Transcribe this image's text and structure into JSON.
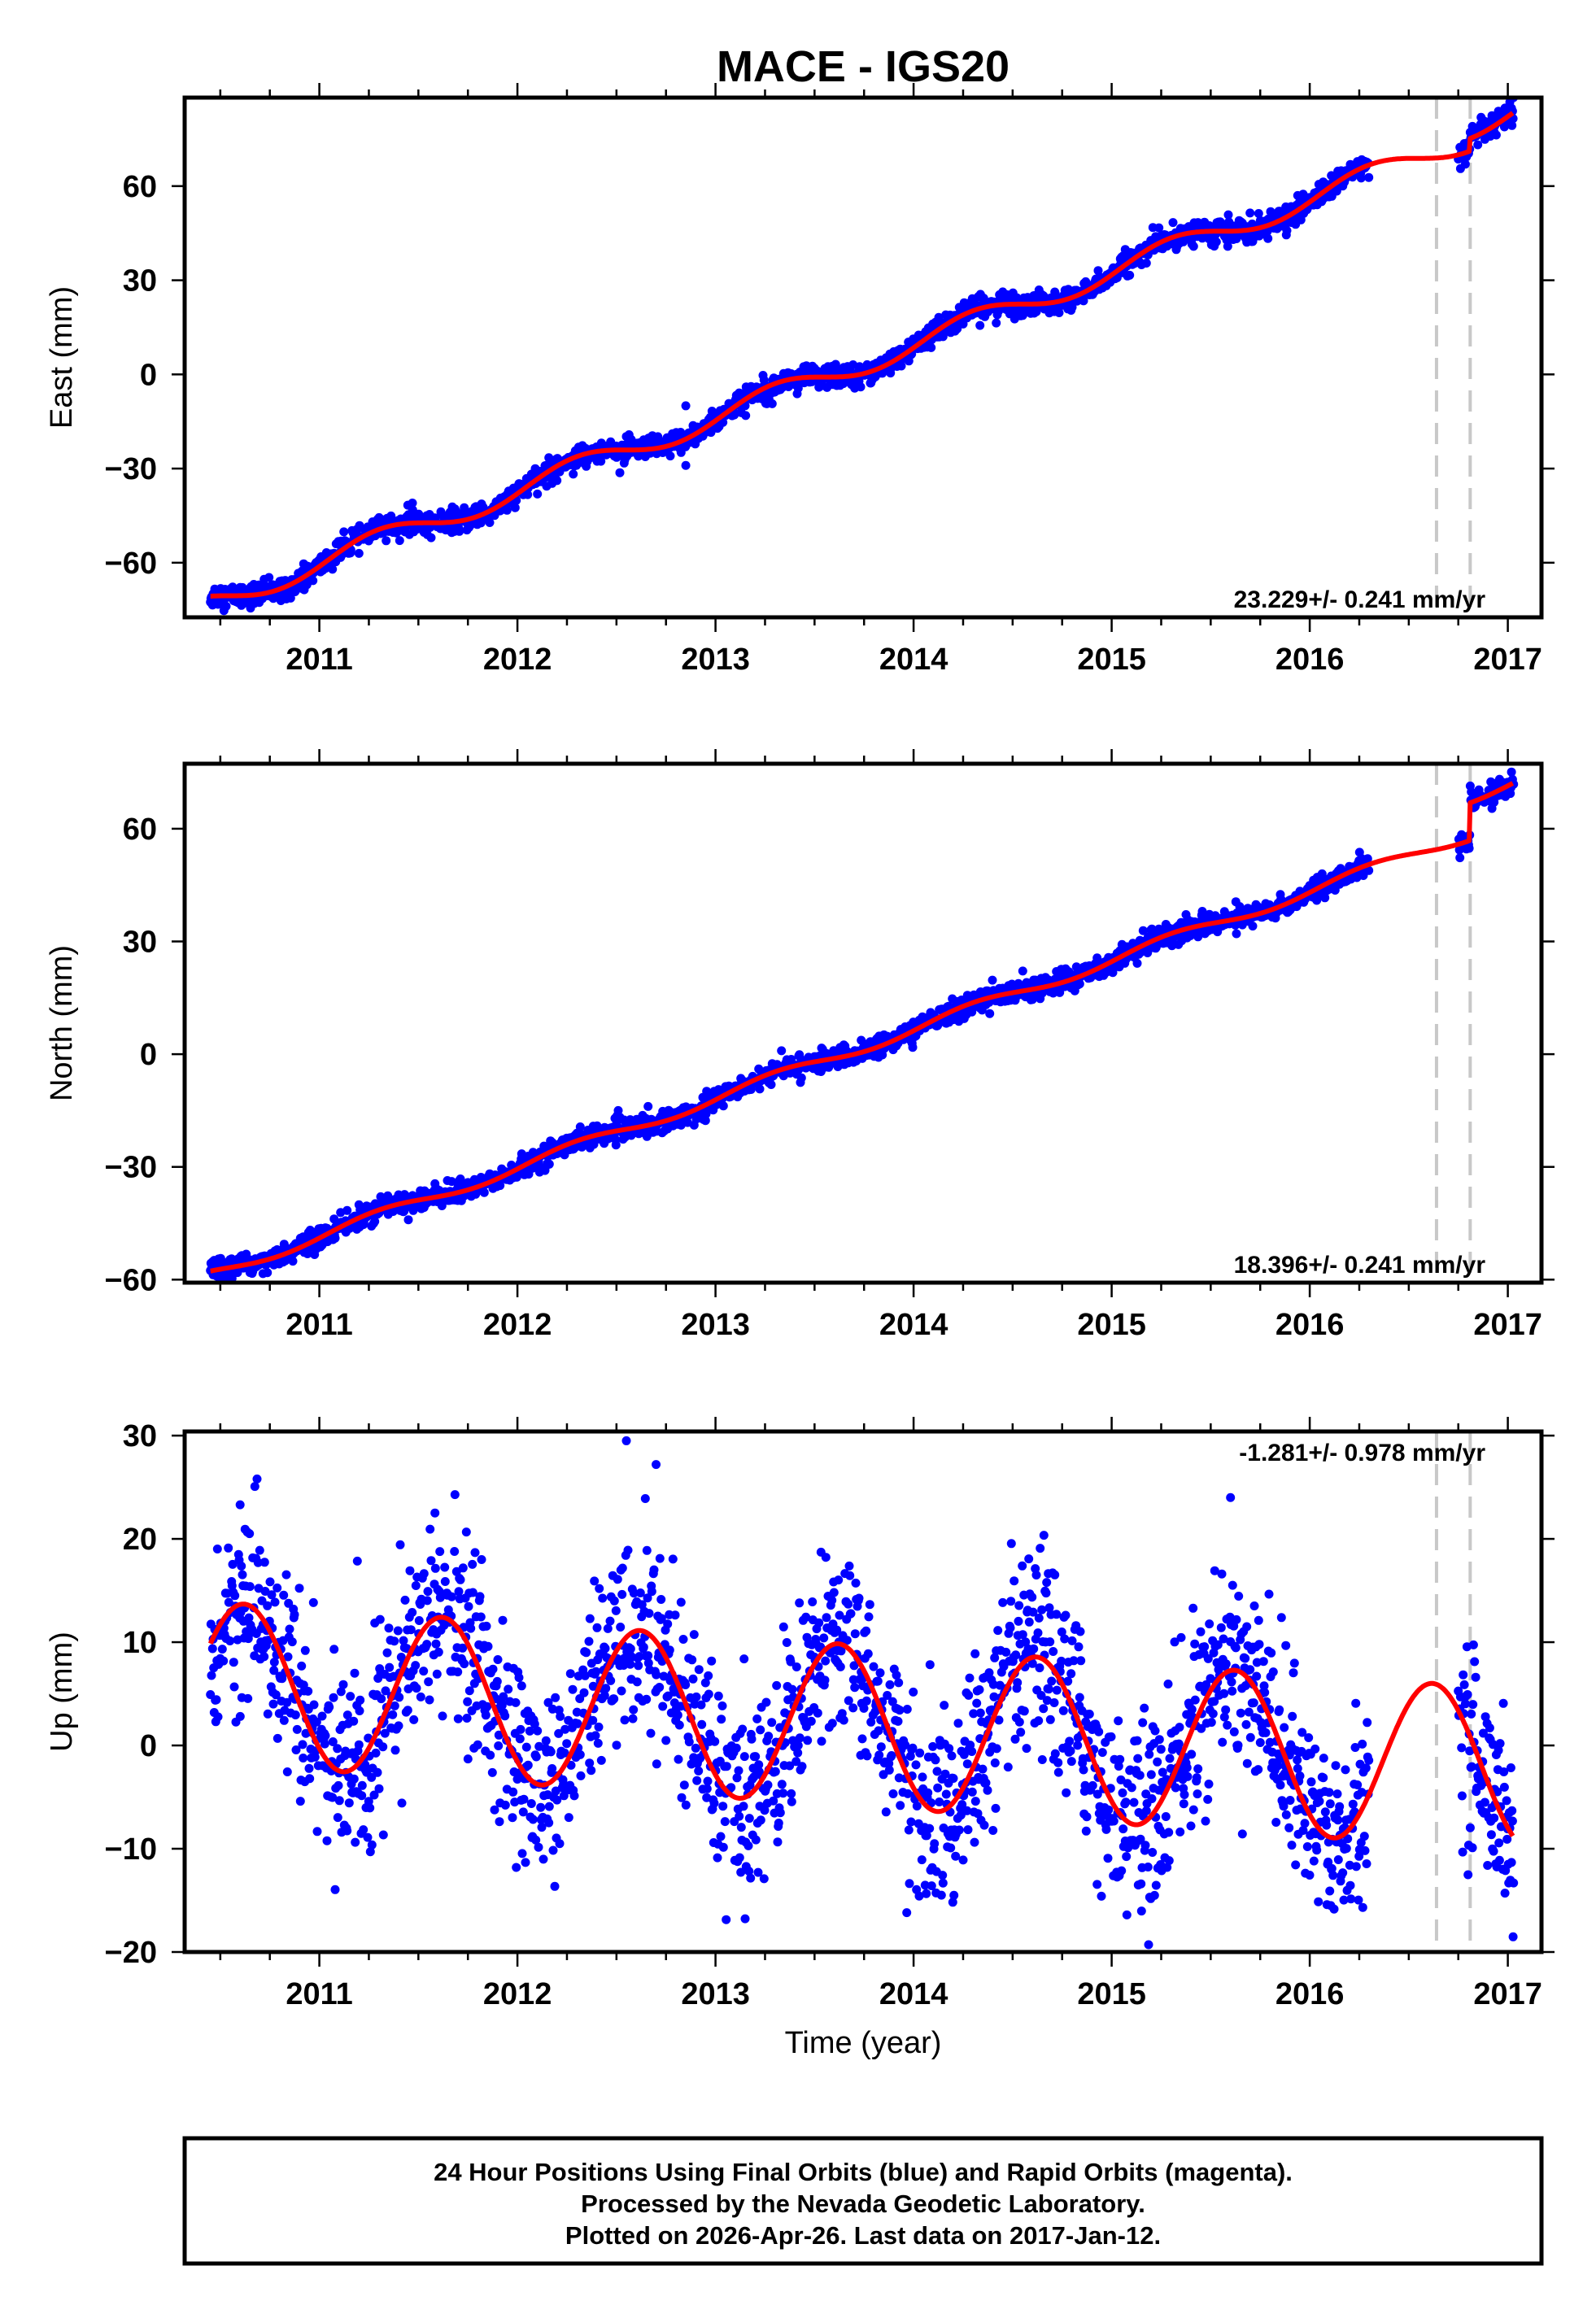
{
  "colors": {
    "data": "#0000ff",
    "model": "#ff0000",
    "offset_line": "#c8c8c8",
    "frame": "#000000"
  },
  "chart_data": {
    "type": "scatter",
    "title": "MACE - IGS20",
    "xlabel": "Time (year)",
    "xlim": [
      2010.32,
      2017.17
    ],
    "xticks": [
      "2011",
      "2012",
      "2013",
      "2014",
      "2015",
      "2016",
      "2017"
    ],
    "offset_epochs": [
      2016.64,
      2016.81
    ],
    "data_spans": [
      [
        2010.45,
        2016.3
      ],
      [
        2016.75,
        2017.03
      ]
    ],
    "panels": [
      {
        "name": "east",
        "ylabel": "East (mm)",
        "ylim": [
          -77.4,
          88.2
        ],
        "yticks": [
          -60,
          -30,
          0,
          30,
          60
        ],
        "rate_label": "23.229+/- 0.241 mm/yr",
        "rate_position": "bottom-right",
        "model": {
          "ref_epoch": 2013.5,
          "intercept": -2,
          "rate": 23.229,
          "annual_amp": 3.7,
          "annual_peak": 0.3,
          "steps": [
            {
              "epoch": 2016.81,
              "size": 4
            }
          ]
        },
        "noise_std": 1.8,
        "outliers": [
          [
            2012.85,
            -10
          ],
          [
            2012.85,
            -29
          ],
          [
            2011.47,
            -41
          ]
        ]
      },
      {
        "name": "north",
        "ylabel": "North (mm)",
        "ylim": [
          -60.8,
          77.3
        ],
        "yticks": [
          -60,
          -30,
          0,
          30,
          60
        ],
        "rate_label": "18.396+/- 0.241 mm/yr",
        "rate_position": "bottom-right",
        "model": {
          "ref_epoch": 2013.5,
          "intercept": -2.5,
          "rate": 18.396,
          "annual_amp": 1.5,
          "annual_peak": 0.3,
          "steps": [
            {
              "epoch": 2016.81,
              "size": 10
            }
          ]
        },
        "noise_std": 1.4,
        "outliers": []
      },
      {
        "name": "up",
        "ylabel": "Up (mm)",
        "ylim": [
          -20,
          30.4
        ],
        "yticks": [
          -20,
          -10,
          0,
          10,
          20,
          30
        ],
        "rate_label": "-1.281+/- 0.978 mm/yr",
        "rate_position": "top-right",
        "model": {
          "ref_epoch": 2013.5,
          "intercept": 2.2,
          "rate": -1.281,
          "annual_amp": 7.8,
          "annual_peak": 0.62,
          "steps": []
        },
        "noise_std": 4.6,
        "outliers": [
          [
            2012.55,
            29.5
          ],
          [
            2012.7,
            27.2
          ],
          [
            2015.6,
            24
          ],
          [
            2010.6,
            23.3
          ]
        ]
      }
    ],
    "legend": "none"
  },
  "footer": {
    "line1": "24 Hour Positions Using Final Orbits (blue) and Rapid Orbits (magenta).",
    "line2": "Processed by the Nevada Geodetic Laboratory.",
    "line3": "Plotted on 2026-Apr-26. Last data on 2017-Jan-12."
  }
}
